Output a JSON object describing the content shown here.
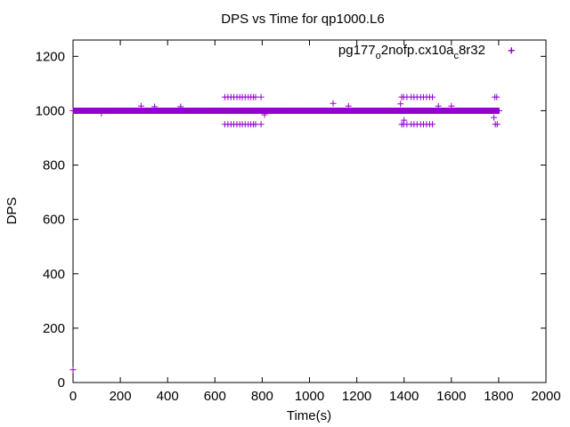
{
  "chart_data": {
    "type": "scatter",
    "title": "DPS vs Time for qp1000.L6",
    "xlabel": "Time(s)",
    "ylabel": "DPS",
    "xlim": [
      0,
      2000
    ],
    "ylim": [
      0,
      1260
    ],
    "xticks": [
      "0",
      "200",
      "400",
      "600",
      "800",
      "1000",
      "1200",
      "1400",
      "1600",
      "1800",
      "2000"
    ],
    "yticks": [
      "0",
      "200",
      "400",
      "600",
      "800",
      "1000",
      "1200"
    ],
    "grid": false,
    "legend_position": "top-right",
    "series": [
      {
        "name_parts": [
          "pg177",
          "o",
          "2nofp.cx10a",
          "c",
          "8r32"
        ],
        "color": "#9400d3",
        "marker": "plus",
        "baseline": {
          "x_start": 0,
          "x_end": 1800,
          "step": 2,
          "y": 1000
        },
        "points": [
          [
            0,
            47
          ],
          [
            120,
            990
          ],
          [
            288,
            1017
          ],
          [
            345,
            1015
          ],
          [
            455,
            1015
          ],
          [
            642,
            1050
          ],
          [
            655,
            1050
          ],
          [
            668,
            1050
          ],
          [
            680,
            1050
          ],
          [
            693,
            1050
          ],
          [
            705,
            1050
          ],
          [
            716,
            1050
          ],
          [
            728,
            1050
          ],
          [
            741,
            1050
          ],
          [
            752,
            1050
          ],
          [
            763,
            1050
          ],
          [
            772,
            1050
          ],
          [
            795,
            1050
          ],
          [
            642,
            950
          ],
          [
            655,
            950
          ],
          [
            668,
            950
          ],
          [
            680,
            950
          ],
          [
            693,
            950
          ],
          [
            705,
            950
          ],
          [
            716,
            950
          ],
          [
            728,
            950
          ],
          [
            741,
            950
          ],
          [
            752,
            950
          ],
          [
            763,
            950
          ],
          [
            772,
            950
          ],
          [
            795,
            950
          ],
          [
            810,
            985
          ],
          [
            1100,
            1027
          ],
          [
            1165,
            1017
          ],
          [
            1385,
            1025
          ],
          [
            1390,
            1050
          ],
          [
            1398,
            1050
          ],
          [
            1412,
            1050
          ],
          [
            1430,
            1050
          ],
          [
            1442,
            1050
          ],
          [
            1455,
            1050
          ],
          [
            1470,
            1050
          ],
          [
            1482,
            1050
          ],
          [
            1495,
            1050
          ],
          [
            1508,
            1050
          ],
          [
            1520,
            1050
          ],
          [
            1390,
            950
          ],
          [
            1398,
            950
          ],
          [
            1412,
            950
          ],
          [
            1430,
            950
          ],
          [
            1442,
            950
          ],
          [
            1455,
            950
          ],
          [
            1470,
            950
          ],
          [
            1482,
            950
          ],
          [
            1495,
            950
          ],
          [
            1508,
            950
          ],
          [
            1520,
            950
          ],
          [
            1400,
            965
          ],
          [
            1545,
            1017
          ],
          [
            1600,
            1017
          ],
          [
            1784,
            1050
          ],
          [
            1792,
            1050
          ],
          [
            1780,
            975
          ],
          [
            1786,
            950
          ],
          [
            1794,
            950
          ],
          [
            1802,
            1000
          ],
          [
            1855,
            1222
          ]
        ]
      }
    ]
  }
}
